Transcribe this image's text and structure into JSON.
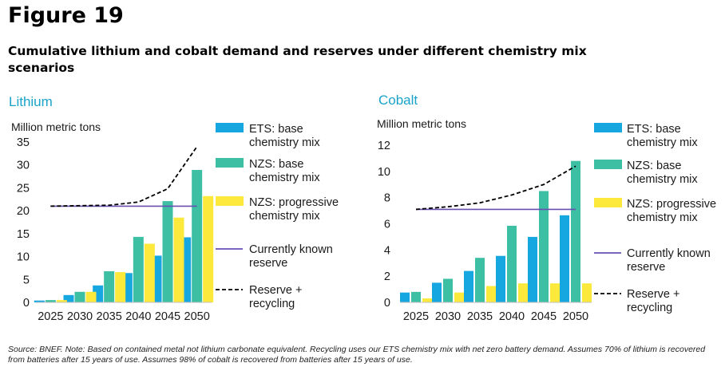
{
  "figure_label": "Figure 19",
  "title": "Cumulative lithium and cobalt demand and reserves under different chemistry mix scenarios",
  "source": "Source: BNEF. Note: Based on contained metal not lithium carbonate equivalent. Recycling uses our ETS chemistry mix with net zero battery demand. Assumes 70% of lithium is recovered from batteries after 15 years of use. Assumes 98% of cobalt is recovered from batteries after 15 years of use.",
  "colors": {
    "ets": "#17a7e0",
    "nzs_base": "#3cbfa3",
    "nzs_prog": "#fce93b",
    "reserve": "#6a4fb3",
    "recycle": "#000000",
    "panel_title": "#19a3c9"
  },
  "legend": [
    {
      "key": "ets",
      "label": "ETS: base chemistry mix"
    },
    {
      "key": "nzs_base",
      "label": "NZS: base chemistry mix"
    },
    {
      "key": "nzs_prog",
      "label": "NZS: progressive chemistry mix"
    },
    {
      "key": "reserve",
      "label": "Currently known reserve"
    },
    {
      "key": "recycle",
      "label": "Reserve + recycling"
    }
  ],
  "chart_data": [
    {
      "type": "bar",
      "title": "Lithium",
      "ylabel": "Million metric tons",
      "ylim": [
        0,
        35
      ],
      "yticks": [
        0,
        5,
        10,
        15,
        20,
        25,
        30,
        35
      ],
      "categories": [
        "2025",
        "2030",
        "2035",
        "2040",
        "2045",
        "2050"
      ],
      "series": [
        {
          "name": "ETS: base chemistry mix",
          "key": "ets",
          "values": [
            0.4,
            1.6,
            3.7,
            6.4,
            10.2,
            14.2
          ]
        },
        {
          "name": "NZS: base chemistry mix",
          "key": "nzs_base",
          "values": [
            0.5,
            2.3,
            6.8,
            14.3,
            22.1,
            28.9
          ]
        },
        {
          "name": "NZS: progressive chemistry mix",
          "key": "nzs_prog",
          "values": [
            0.5,
            2.3,
            6.6,
            12.8,
            18.5,
            23.2
          ]
        }
      ],
      "lines": [
        {
          "name": "Currently known reserve",
          "key": "reserve",
          "values": [
            21,
            21,
            21,
            21,
            21,
            21
          ]
        },
        {
          "name": "Reserve + recycling",
          "key": "recycle",
          "values": [
            21,
            21.1,
            21.2,
            21.9,
            24.8,
            34
          ]
        }
      ]
    },
    {
      "type": "bar",
      "title": "Cobalt",
      "ylabel": "Million metric tons",
      "ylim": [
        0,
        12
      ],
      "yticks": [
        0,
        2,
        4,
        6,
        8,
        10,
        12
      ],
      "categories": [
        "2025",
        "2030",
        "2035",
        "2040",
        "2045",
        "2050"
      ],
      "series": [
        {
          "name": "ETS: base chemistry mix",
          "key": "ets",
          "values": [
            0.75,
            1.5,
            2.4,
            3.55,
            5.0,
            6.65
          ]
        },
        {
          "name": "NZS: base chemistry mix",
          "key": "nzs_base",
          "values": [
            0.8,
            1.8,
            3.4,
            5.85,
            8.5,
            10.8
          ]
        },
        {
          "name": "NZS: progressive chemistry mix",
          "key": "nzs_prog",
          "values": [
            0.3,
            0.75,
            1.25,
            1.45,
            1.45,
            1.45
          ]
        }
      ],
      "lines": [
        {
          "name": "Currently known reserve",
          "key": "reserve",
          "values": [
            7.1,
            7.1,
            7.1,
            7.1,
            7.1,
            7.1
          ]
        },
        {
          "name": "Reserve + recycling",
          "key": "recycle",
          "values": [
            7.1,
            7.3,
            7.6,
            8.2,
            9.0,
            10.4
          ]
        }
      ]
    }
  ]
}
